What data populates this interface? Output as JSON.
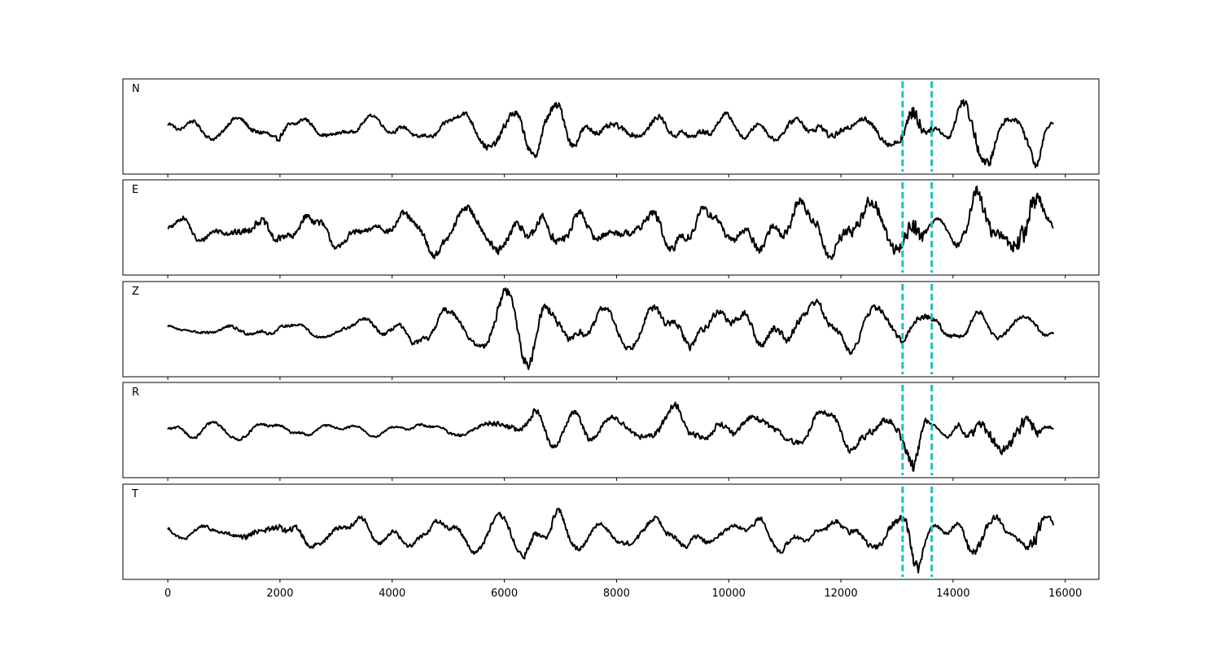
{
  "chart_data": {
    "type": "line",
    "panels": [
      "N",
      "E",
      "Z",
      "R",
      "T"
    ],
    "x_range": [
      0,
      15800
    ],
    "xlim": [
      -800,
      16600
    ],
    "x_ticks": [
      0,
      2000,
      4000,
      6000,
      8000,
      10000,
      12000,
      14000,
      16000
    ],
    "x_tick_labels": [
      "0",
      "2000",
      "4000",
      "6000",
      "8000",
      "10000",
      "12000",
      "14000",
      "16000"
    ],
    "markers": [
      13100,
      13620
    ],
    "colors": {
      "trace": "#000000",
      "marker": "#1fbfbf"
    },
    "grid": false,
    "series": [
      {
        "name": "N",
        "x": [
          0,
          500,
          1000,
          1500,
          2000,
          2500,
          3000,
          3500,
          4000,
          4500,
          5000,
          5500,
          6000,
          6500,
          7000,
          7500,
          8000,
          8500,
          9000,
          9500,
          10000,
          10500,
          11000,
          11500,
          12000,
          12500,
          13000,
          13100,
          13200,
          13300,
          13400,
          13500,
          13620,
          13800,
          14000,
          14200,
          14400,
          14600,
          14800,
          15000,
          15200,
          15400,
          15500,
          15600,
          15800
        ],
        "amplitude": [
          0.15,
          0.18,
          0.2,
          0.25,
          0.3,
          0.18,
          0.18,
          0.15,
          0.18,
          0.2,
          0.22,
          0.28,
          0.4,
          0.42,
          0.45,
          0.3,
          0.28,
          0.25,
          0.28,
          0.3,
          0.22,
          0.2,
          0.25,
          0.3,
          0.3,
          0.3,
          0.35,
          0.5,
          0.7,
          1.0,
          0.8,
          0.4,
          0.25,
          0.2,
          0.3,
          0.55,
          0.7,
          0.6,
          0.45,
          0.2,
          0.3,
          0.45,
          0.55,
          0.3,
          0.08
        ]
      },
      {
        "name": "E",
        "x": [
          0,
          500,
          1000,
          1500,
          2000,
          2500,
          3000,
          3500,
          4000,
          4500,
          5000,
          5500,
          6000,
          6500,
          7000,
          7500,
          8000,
          8500,
          9000,
          9500,
          10000,
          10500,
          11000,
          11500,
          12000,
          12500,
          13000,
          13100,
          13200,
          13300,
          13400,
          13500,
          13620,
          13800,
          14000,
          14200,
          14400,
          14600,
          14800,
          15000,
          15200,
          15400,
          15500,
          15600,
          15800
        ],
        "amplitude": [
          0.15,
          0.2,
          0.25,
          0.3,
          0.32,
          0.3,
          0.25,
          0.22,
          0.25,
          0.28,
          0.3,
          0.3,
          0.4,
          0.4,
          0.35,
          0.3,
          0.25,
          0.3,
          0.4,
          0.35,
          0.3,
          0.35,
          0.4,
          0.35,
          0.45,
          0.5,
          0.45,
          0.5,
          0.6,
          1.0,
          0.8,
          0.35,
          0.15,
          0.12,
          0.2,
          0.35,
          0.6,
          0.6,
          0.55,
          0.55,
          0.9,
          1.0,
          0.9,
          0.4,
          0.15
        ]
      },
      {
        "name": "Z",
        "x": [
          0,
          500,
          1000,
          1500,
          2000,
          2500,
          3000,
          3500,
          4000,
          4500,
          5000,
          5500,
          6000,
          6500,
          7000,
          7500,
          8000,
          8500,
          9000,
          9500,
          10000,
          10500,
          11000,
          11500,
          12000,
          12500,
          13000,
          13100,
          13200,
          13300,
          13400,
          13500,
          13620,
          13800,
          14000,
          14200,
          14400,
          14600,
          14800,
          15000,
          15200,
          15400,
          15500,
          15600,
          15800
        ],
        "amplitude": [
          0.12,
          0.2,
          0.3,
          0.3,
          0.25,
          0.2,
          0.25,
          0.3,
          0.35,
          0.45,
          0.5,
          0.4,
          0.9,
          0.85,
          0.7,
          0.55,
          0.5,
          0.55,
          0.7,
          0.6,
          0.55,
          0.6,
          0.7,
          0.65,
          0.55,
          0.5,
          0.55,
          0.6,
          0.6,
          0.5,
          0.5,
          0.55,
          0.5,
          0.45,
          0.4,
          0.45,
          0.4,
          0.35,
          0.35,
          0.3,
          0.3,
          0.3,
          0.35,
          0.3,
          0.15
        ]
      },
      {
        "name": "R",
        "x": [
          0,
          500,
          1000,
          1500,
          2000,
          2500,
          3000,
          3500,
          4000,
          4500,
          5000,
          5500,
          6000,
          6500,
          7000,
          7500,
          8000,
          8500,
          9000,
          9500,
          10000,
          10500,
          11000,
          11500,
          12000,
          12500,
          13000,
          13100,
          13200,
          13300,
          13400,
          13500,
          13620,
          13800,
          14000,
          14200,
          14400,
          14600,
          14800,
          15000,
          15200,
          15400,
          15500,
          15600,
          15800
        ],
        "amplitude": [
          0.12,
          0.15,
          0.15,
          0.15,
          0.15,
          0.12,
          0.12,
          0.1,
          0.1,
          0.12,
          0.15,
          0.18,
          0.35,
          0.35,
          0.3,
          0.3,
          0.25,
          0.3,
          0.4,
          0.3,
          0.3,
          0.35,
          0.3,
          0.3,
          0.35,
          0.4,
          0.35,
          0.5,
          0.7,
          1.0,
          0.8,
          0.35,
          0.12,
          0.1,
          0.2,
          0.45,
          0.6,
          0.6,
          0.5,
          0.5,
          0.75,
          0.8,
          0.7,
          0.35,
          0.12
        ]
      },
      {
        "name": "T",
        "x": [
          0,
          500,
          1000,
          1500,
          2000,
          2500,
          3000,
          3500,
          4000,
          4500,
          5000,
          5500,
          6000,
          6500,
          7000,
          7500,
          8000,
          8500,
          9000,
          9500,
          10000,
          10500,
          11000,
          11500,
          12000,
          12500,
          13000,
          13100,
          13200,
          13300,
          13400,
          13500,
          13620,
          13800,
          14000,
          14200,
          14400,
          14600,
          14800,
          15000,
          15200,
          15400,
          15500,
          15600,
          15800
        ],
        "amplitude": [
          0.15,
          0.2,
          0.28,
          0.4,
          0.45,
          0.35,
          0.3,
          0.3,
          0.28,
          0.3,
          0.32,
          0.35,
          0.4,
          0.5,
          0.45,
          0.3,
          0.28,
          0.35,
          0.4,
          0.32,
          0.3,
          0.3,
          0.35,
          0.3,
          0.35,
          0.4,
          0.45,
          0.5,
          0.8,
          1.0,
          0.8,
          0.35,
          0.25,
          0.2,
          0.3,
          0.5,
          0.6,
          0.6,
          0.5,
          0.15,
          0.3,
          0.9,
          1.0,
          0.6,
          0.1
        ]
      }
    ]
  }
}
